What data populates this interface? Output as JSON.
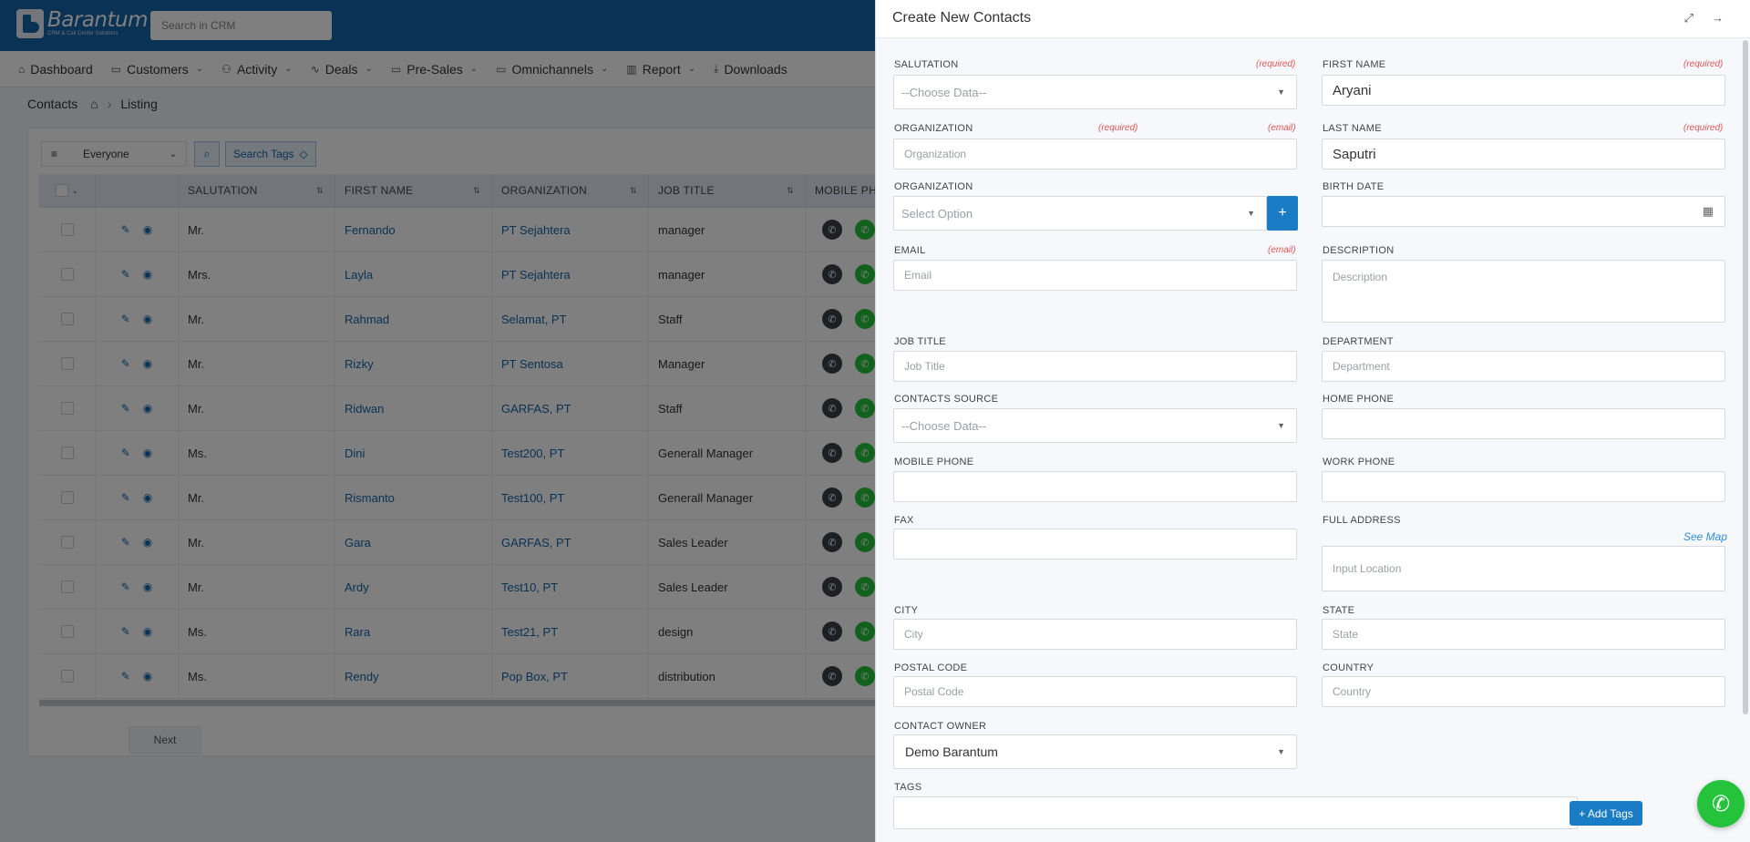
{
  "header": {
    "logo_name": "Barantum",
    "logo_tagline": "CRM & Call Center Solutions",
    "search_placeholder": "Search in CRM"
  },
  "nav": [
    {
      "label": "Dashboard",
      "icon": "home-icon",
      "has_menu": false
    },
    {
      "label": "Customers",
      "icon": "folder-icon",
      "has_menu": true
    },
    {
      "label": "Activity",
      "icon": "users-icon",
      "has_menu": true
    },
    {
      "label": "Deals",
      "icon": "pulse-icon",
      "has_menu": true
    },
    {
      "label": "Pre-Sales",
      "icon": "folder-icon",
      "has_menu": true
    },
    {
      "label": "Omnichannels",
      "icon": "folder-icon",
      "has_menu": true
    },
    {
      "label": "Report",
      "icon": "bar-chart-icon",
      "has_menu": true
    },
    {
      "label": "Downloads",
      "icon": "download-icon",
      "has_menu": false
    }
  ],
  "breadcrumb": {
    "title": "Contacts",
    "current": "Listing"
  },
  "filters": {
    "owner_filter": "Everyone",
    "search_tags_label": "Search Tags"
  },
  "table": {
    "columns": [
      "SALUTATION",
      "FIRST NAME",
      "ORGANIZATION",
      "JOB TITLE",
      "MOBILE PH"
    ],
    "rows": [
      {
        "salutation": "Mr.",
        "first_name": "Fernando",
        "organization": "PT Sejahtera",
        "job_title": "manager"
      },
      {
        "salutation": "Mrs.",
        "first_name": "Layla",
        "organization": "PT Sejahtera",
        "job_title": "manager"
      },
      {
        "salutation": "Mr.",
        "first_name": "Rahmad",
        "organization": "Selamat, PT",
        "job_title": "Staff"
      },
      {
        "salutation": "Mr.",
        "first_name": "Rizky",
        "organization": "PT Sentosa",
        "job_title": "Manager"
      },
      {
        "salutation": "Mr.",
        "first_name": "Ridwan",
        "organization": "GARFAS, PT",
        "job_title": "Staff"
      },
      {
        "salutation": "Ms.",
        "first_name": "Dini",
        "organization": "Test200, PT",
        "job_title": "Generall Manager"
      },
      {
        "salutation": "Mr.",
        "first_name": "Rismanto",
        "organization": "Test100, PT",
        "job_title": "Generall Manager"
      },
      {
        "salutation": "Mr.",
        "first_name": "Gara",
        "organization": "GARFAS, PT",
        "job_title": "Sales Leader"
      },
      {
        "salutation": "Mr.",
        "first_name": "Ardy",
        "organization": "Test10, PT",
        "job_title": "Sales Leader"
      },
      {
        "salutation": "Ms.",
        "first_name": "Rara",
        "organization": "Test21, PT",
        "job_title": "design"
      },
      {
        "salutation": "Ms.",
        "first_name": "Rendy",
        "organization": "Pop Box, PT",
        "job_title": "distribution"
      }
    ]
  },
  "pager": {
    "next_label": "Next"
  },
  "drawer": {
    "title": "Create New Contacts",
    "required_tag": "(required)",
    "email_tag": "(email)",
    "salutation": {
      "label": "SALUTATION",
      "value": "--Choose Data--"
    },
    "first_name": {
      "label": "FIRST NAME",
      "value": "Aryani"
    },
    "organization_text": {
      "label": "ORGANIZATION",
      "placeholder": "Organization"
    },
    "last_name": {
      "label": "LAST NAME",
      "value": "Saputri"
    },
    "organization_select": {
      "label": "ORGANIZATION",
      "value": "Select Option",
      "add_label": "+"
    },
    "birth_date": {
      "label": "BIRTH DATE",
      "value": ""
    },
    "email": {
      "label": "EMAIL",
      "placeholder": "Email"
    },
    "description": {
      "label": "DESCRIPTION",
      "placeholder": "Description"
    },
    "job_title": {
      "label": "JOB TITLE",
      "placeholder": "Job Title"
    },
    "department": {
      "label": "DEPARTMENT",
      "placeholder": "Department"
    },
    "contacts_source": {
      "label": "CONTACTS SOURCE",
      "value": "--Choose Data--"
    },
    "home_phone": {
      "label": "HOME PHONE",
      "value": ""
    },
    "mobile_phone": {
      "label": "MOBILE PHONE",
      "value": ""
    },
    "work_phone": {
      "label": "WORK PHONE",
      "value": ""
    },
    "fax": {
      "label": "FAX",
      "value": ""
    },
    "full_address": {
      "label": "FULL ADDRESS",
      "placeholder": "Input Location",
      "see_map": "See Map"
    },
    "city": {
      "label": "CITY",
      "placeholder": "City"
    },
    "state": {
      "label": "STATE",
      "placeholder": "State"
    },
    "postal_code": {
      "label": "POSTAL CODE",
      "placeholder": "Postal Code"
    },
    "country": {
      "label": "COUNTRY",
      "placeholder": "Country"
    },
    "contact_owner": {
      "label": "CONTACT OWNER",
      "value": "Demo Barantum"
    },
    "tags": {
      "label": "TAGS",
      "add_label": "+ Add Tags"
    }
  },
  "colors": {
    "brand": "#1565a8",
    "accent": "#1b7cc6",
    "required": "#e05454",
    "whatsapp": "#25c23b"
  }
}
